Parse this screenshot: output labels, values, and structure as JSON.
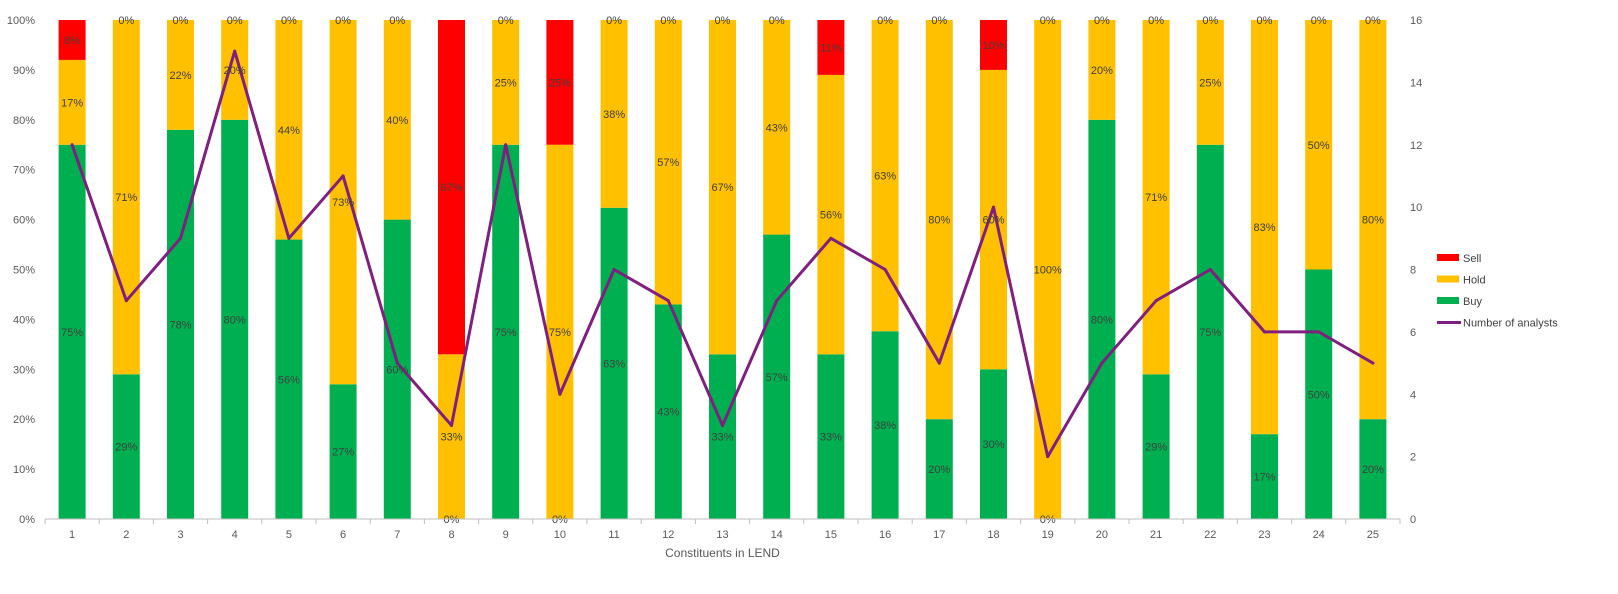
{
  "chart_data": {
    "type": "bar",
    "stacked": true,
    "xlabel": "Constituents in LEND",
    "categories": [
      "1",
      "2",
      "3",
      "4",
      "5",
      "6",
      "7",
      "8",
      "9",
      "10",
      "11",
      "12",
      "13",
      "14",
      "15",
      "16",
      "17",
      "18",
      "19",
      "20",
      "21",
      "22",
      "23",
      "24",
      "25"
    ],
    "series": [
      {
        "name": "Buy",
        "color": "#00b050",
        "values": [
          75,
          29,
          78,
          80,
          56,
          27,
          60,
          0,
          75,
          0,
          63,
          43,
          33,
          57,
          33,
          38,
          20,
          30,
          0,
          80,
          29,
          75,
          17,
          50,
          20
        ],
        "labels": [
          "75%",
          "29%",
          "78%",
          "80%",
          "56%",
          "27%",
          "60%",
          "0%",
          "75%",
          "0%",
          "63%",
          "43%",
          "33%",
          "57%",
          "33%",
          "38%",
          "20%",
          "30%",
          "0%",
          "80%",
          "29%",
          "75%",
          "17%",
          "50%",
          "20%"
        ]
      },
      {
        "name": "Hold",
        "color": "#ffc000",
        "values": [
          17,
          71,
          22,
          20,
          44,
          73,
          40,
          33,
          25,
          75,
          38,
          57,
          67,
          43,
          56,
          63,
          80,
          60,
          100,
          20,
          71,
          25,
          83,
          50,
          80
        ],
        "labels": [
          "17%",
          "71%",
          "22%",
          "20%",
          "44%",
          "73%",
          "40%",
          "33%",
          "25%",
          "75%",
          "38%",
          "57%",
          "67%",
          "43%",
          "56%",
          "63%",
          "80%",
          "60%",
          "100%",
          "20%",
          "71%",
          "25%",
          "83%",
          "50%",
          "80%"
        ]
      },
      {
        "name": "Sell",
        "color": "#ff0000",
        "values": [
          8,
          0,
          0,
          0,
          0,
          0,
          0,
          67,
          0,
          25,
          0,
          0,
          0,
          0,
          11,
          0,
          0,
          10,
          0,
          0,
          0,
          0,
          0,
          0,
          0
        ],
        "labels": [
          "8%",
          "0%",
          "0%",
          "0%",
          "0%",
          "0%",
          "0%",
          "67%",
          "0%",
          "25%",
          "0%",
          "0%",
          "0%",
          "0%",
          "11%",
          "0%",
          "0%",
          "10%",
          "0%",
          "0%",
          "0%",
          "0%",
          "0%",
          "0%",
          "0%"
        ]
      }
    ],
    "line_series": {
      "name": "Number of analysts",
      "color": "#7f1f7f",
      "axis": "right",
      "values": [
        12,
        7,
        9,
        15,
        9,
        11,
        5,
        3,
        12,
        4,
        8,
        7,
        3,
        7,
        9,
        8,
        5,
        10,
        2,
        5,
        7,
        8,
        6,
        6,
        5
      ]
    },
    "y_left": {
      "min": 0,
      "max": 100,
      "step": 10,
      "tick_labels": [
        "0%",
        "10%",
        "20%",
        "30%",
        "40%",
        "50%",
        "60%",
        "70%",
        "80%",
        "90%",
        "100%"
      ]
    },
    "y_right": {
      "min": 0,
      "max": 16,
      "step": 2,
      "tick_labels": [
        "0",
        "2",
        "4",
        "6",
        "8",
        "10",
        "12",
        "14",
        "16"
      ]
    },
    "legend": {
      "placement": "right",
      "items": [
        {
          "name": "Sell",
          "color": "#ff0000",
          "kind": "box"
        },
        {
          "name": "Hold",
          "color": "#ffc000",
          "kind": "box"
        },
        {
          "name": "Buy",
          "color": "#00b050",
          "kind": "box"
        },
        {
          "name": "Number of analysts",
          "color": "#7f1f7f",
          "kind": "line"
        }
      ]
    },
    "grid": false
  }
}
